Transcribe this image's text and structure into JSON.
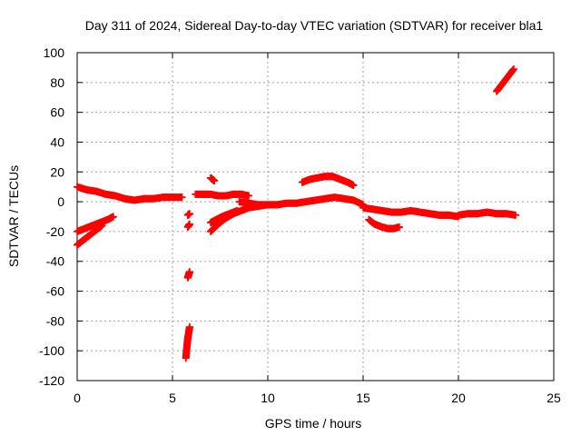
{
  "chart_data": {
    "type": "scatter",
    "title": "Day 311 of 2024, Sidereal Day-to-day VTEC variation (SDTVAR) for receiver bla1",
    "xlabel": "GPS time / hours",
    "ylabel": "SDTVAR / TECUs",
    "xlim": [
      0,
      25
    ],
    "ylim": [
      -120,
      100
    ],
    "xticks": [
      0,
      5,
      10,
      15,
      20,
      25
    ],
    "yticks": [
      -120,
      -100,
      -80,
      -60,
      -40,
      -20,
      0,
      20,
      40,
      60,
      80,
      100
    ],
    "grid": true,
    "marker": "plus",
    "color": "#ff0000",
    "series": [
      {
        "name": "main-upper",
        "x": [
          0,
          0.5,
          1,
          1.5,
          2,
          2.5,
          3,
          3.5,
          4,
          4.5,
          5,
          5.5
        ],
        "y": [
          10,
          8,
          7,
          5,
          4,
          2,
          1,
          2,
          2,
          3,
          3,
          3
        ]
      },
      {
        "name": "segment-6-7h",
        "x": [
          6.2,
          6.6,
          7,
          7.4,
          7.8,
          8.2,
          8.6,
          9
        ],
        "y": [
          5,
          5,
          5,
          4,
          4,
          5,
          5,
          4
        ]
      },
      {
        "name": "main-middle",
        "x": [
          8.5,
          9,
          9.5,
          10,
          10.5,
          11,
          11.5,
          12,
          12.5,
          13,
          13.5,
          14,
          14.5,
          15
        ],
        "y": [
          0,
          -1,
          -2,
          -2,
          -2,
          -1,
          -1,
          0,
          1,
          2,
          3,
          2,
          1,
          -2
        ]
      },
      {
        "name": "main-lower",
        "x": [
          15,
          15.5,
          16,
          16.5,
          17,
          17.5,
          18,
          18.5,
          19,
          19.5,
          20
        ],
        "y": [
          -4,
          -5,
          -6,
          -7,
          -7,
          -6,
          -7,
          -8,
          -9,
          -9,
          -10
        ]
      },
      {
        "name": "main-late",
        "x": [
          20,
          20.5,
          21,
          21.5,
          22,
          22.5,
          23
        ],
        "y": [
          -9,
          -8,
          -8,
          -7,
          -8,
          -8,
          -9
        ]
      },
      {
        "name": "early-rise-1",
        "x": [
          0,
          0.4,
          0.8,
          1.2,
          1.6,
          1.9
        ],
        "y": [
          -20,
          -18,
          -16,
          -14,
          -12,
          -10
        ]
      },
      {
        "name": "early-rise-2",
        "x": [
          0,
          0.3,
          0.6,
          1,
          1.3
        ],
        "y": [
          -29,
          -26,
          -23,
          -19,
          -16
        ]
      },
      {
        "name": "arc-7-9h",
        "x": [
          7,
          7.4,
          7.8,
          8.2,
          8.6,
          9,
          9.5,
          10
        ],
        "y": [
          -20,
          -15,
          -11,
          -8,
          -6,
          -4,
          -3,
          -2
        ]
      },
      {
        "name": "arc-7-8h",
        "x": [
          7,
          7.3,
          7.6,
          8,
          8.4
        ],
        "y": [
          -14,
          -12,
          -10,
          -8,
          -6
        ]
      },
      {
        "name": "hump-12-14h",
        "x": [
          11.8,
          12.2,
          12.6,
          13,
          13.4,
          13.8,
          14.2,
          14.5
        ],
        "y": [
          13,
          15,
          16,
          17,
          17,
          15,
          13,
          11
        ]
      },
      {
        "name": "dip-15-17h",
        "x": [
          15.3,
          15.6,
          16,
          16.3,
          16.6,
          16.9
        ],
        "y": [
          -12,
          -15,
          -17,
          -18,
          -18,
          -17
        ]
      },
      {
        "name": "sharp-5.8h",
        "x": [
          5.7,
          5.75,
          5.8,
          5.85,
          5.9
        ],
        "y": [
          -105,
          -98,
          -92,
          -88,
          -84
        ]
      },
      {
        "name": "sharp-5.8h-b",
        "x": [
          5.8,
          5.85,
          5.9
        ],
        "y": [
          -51,
          -49,
          -47
        ]
      },
      {
        "name": "sharp-5.8h-c",
        "x": [
          5.8,
          5.9
        ],
        "y": [
          -9,
          -8
        ]
      },
      {
        "name": "sharp-5.8h-d",
        "x": [
          5.8,
          5.9
        ],
        "y": [
          -17,
          -15
        ]
      },
      {
        "name": "spike-7h",
        "x": [
          7,
          7.2
        ],
        "y": [
          16,
          14
        ]
      },
      {
        "name": "late-rise",
        "x": [
          22,
          22.3,
          22.6,
          22.9
        ],
        "y": [
          74,
          79,
          84,
          89
        ]
      }
    ]
  }
}
